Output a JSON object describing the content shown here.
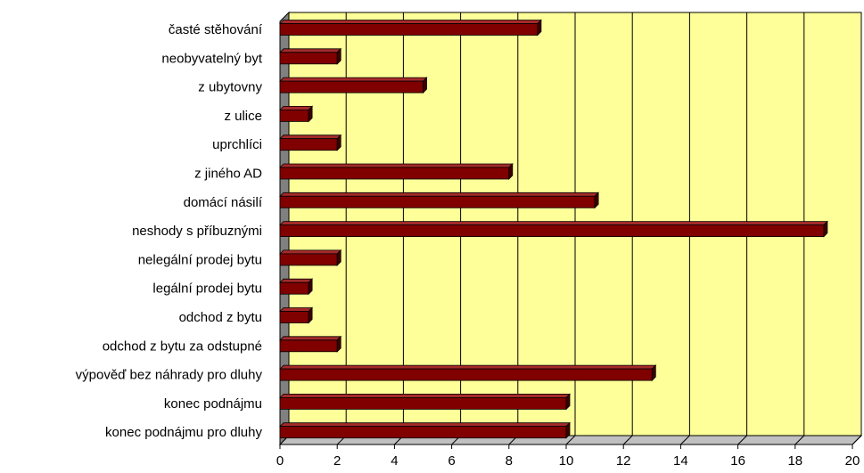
{
  "chart_data": {
    "type": "bar",
    "orientation": "horizontal",
    "three_d": true,
    "categories": [
      "časté stěhování",
      "neobyvatelný byt",
      "z ubytovny",
      "z ulice",
      "uprchlíci",
      "z jiného AD",
      "domácí násilí",
      "neshody s příbuznými",
      "nelegální prodej bytu",
      "legální prodej bytu",
      "odchod z bytu",
      "odchod z bytu za odstupné",
      "výpověď bez náhrady pro dluhy",
      "konec podnájmu",
      "konec podnájmu pro dluhy"
    ],
    "values": [
      9,
      2,
      5,
      1,
      2,
      8,
      11,
      19,
      2,
      1,
      1,
      2,
      13,
      10,
      10
    ],
    "xlim": [
      0,
      20
    ],
    "x_ticks": [
      0,
      2,
      4,
      6,
      8,
      10,
      12,
      14,
      16,
      18,
      20
    ],
    "title": "",
    "xlabel": "",
    "ylabel": "",
    "grid": "vertical",
    "legend": "none",
    "colors": {
      "bar_front": "#800000",
      "bar_top": "#a52a2a",
      "bar_side": "#3d0000",
      "plot_wall": "#ffff99",
      "wall_side": "#808080",
      "floor": "#c0c0c0",
      "gridline": "#000000"
    }
  }
}
